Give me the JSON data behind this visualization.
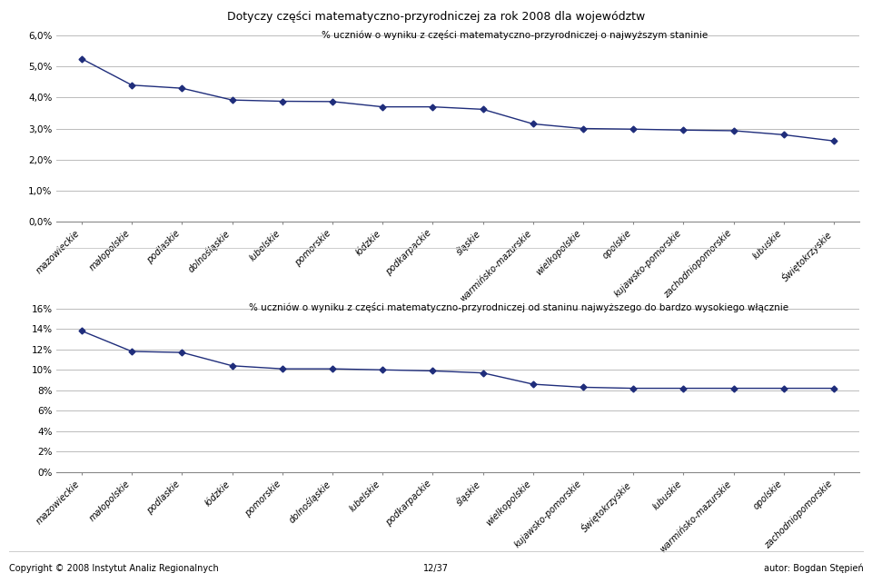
{
  "title": "Dotyczy części matematyczno-przyrodniczej za rok 2008 dla województw",
  "line_color": "#1F2D7B",
  "marker": "D",
  "marker_size": 3.5,
  "linewidth": 1.0,
  "chart1": {
    "categories": [
      "mazowieckie",
      "małopolskie",
      "podlaskie",
      "dolnośląskie",
      "lubelskie",
      "pomorskie",
      "łódzkie",
      "podkarpackie",
      "śląskie",
      "warmińsko-mazurskie",
      "wielkopolskie",
      "opolskie",
      "kujawsko-pomorskie",
      "zachodniopomorskie",
      "lubuskie",
      "Świętokrzyskie"
    ],
    "values": [
      0.0525,
      0.044,
      0.043,
      0.0392,
      0.0388,
      0.0387,
      0.037,
      0.037,
      0.0362,
      0.0315,
      0.03,
      0.0298,
      0.0295,
      0.0293,
      0.028,
      0.026
    ],
    "ylabel_ticks": [
      0.0,
      0.01,
      0.02,
      0.03,
      0.04,
      0.05,
      0.06
    ],
    "ylabel_labels": [
      "0,0%",
      "1,0%",
      "2,0%",
      "3,0%",
      "4,0%",
      "5,0%",
      "6,0%"
    ],
    "ylim": [
      0.0,
      0.063
    ],
    "legend_text": "% uczniów o wyniku z części matematyczno-przyrodniczej o najwyższym staninie"
  },
  "chart2": {
    "categories": [
      "mazowieckie",
      "małopolskie",
      "podlaskie",
      "łódzkie",
      "pomorskie",
      "dolnośląskie",
      "lubelskie",
      "podkarpackie",
      "śląskie",
      "wielkopolskie",
      "kujawsko-pomorskie",
      "Świętokrzyskie",
      "lubuskie",
      "warmińsko-mazurskie",
      "opolskie",
      "zachodniopomorskie"
    ],
    "values": [
      0.138,
      0.118,
      0.117,
      0.104,
      0.101,
      0.101,
      0.1,
      0.099,
      0.097,
      0.086,
      0.083,
      0.082,
      0.082,
      0.082,
      0.082,
      0.082
    ],
    "ylabel_ticks": [
      0.0,
      0.02,
      0.04,
      0.06,
      0.08,
      0.1,
      0.12,
      0.14,
      0.16
    ],
    "ylabel_labels": [
      "0%",
      "2%",
      "4%",
      "6%",
      "8%",
      "10%",
      "12%",
      "14%",
      "16%"
    ],
    "ylim": [
      0.0,
      0.168
    ],
    "legend_text": "% uczniów o wyniku z części matematyczno-przyrodniczej od staninu najwyższego do bardzo wysokiego włącznie"
  },
  "footer_left": "Copyright © 2008 Instytut Analiz Regionalnych",
  "footer_center": "12/37",
  "footer_right": "autor: Bogdan Stępień",
  "bg_color": "#FFFFFF",
  "grid_color": "#BBBBBB",
  "font_family": "DejaVu Sans",
  "title_fontsize": 9,
  "tick_fontsize": 7,
  "legend_fontsize": 7.5,
  "footer_fontsize": 7
}
